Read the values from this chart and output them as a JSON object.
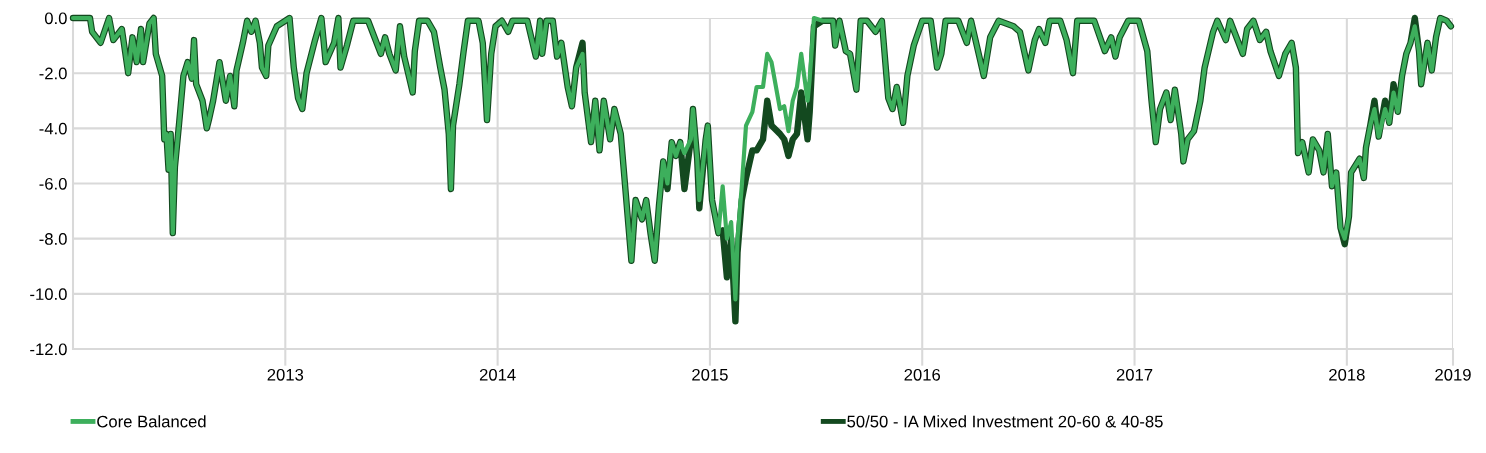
{
  "chart_data": {
    "type": "line",
    "x": [
      2012.0,
      2012.08,
      2012.09,
      2012.13,
      2012.17,
      2012.19,
      2012.23,
      2012.26,
      2012.28,
      2012.3,
      2012.32,
      2012.33,
      2012.36,
      2012.38,
      2012.39,
      2012.42,
      2012.43,
      2012.44,
      2012.45,
      2012.46,
      2012.47,
      2012.48,
      2012.5,
      2012.52,
      2012.54,
      2012.56,
      2012.57,
      2012.58,
      2012.61,
      2012.63,
      2012.64,
      2012.66,
      2012.69,
      2012.72,
      2012.74,
      2012.76,
      2012.77,
      2012.8,
      2012.82,
      2012.84,
      2012.86,
      2012.88,
      2012.89,
      2012.91,
      2012.92,
      2012.96,
      2013.02,
      2013.04,
      2013.06,
      2013.08,
      2013.1,
      2013.14,
      2013.17,
      2013.19,
      2013.23,
      2013.25,
      2013.26,
      2013.29,
      2013.32,
      2013.39,
      2013.45,
      2013.47,
      2013.49,
      2013.52,
      2013.54,
      2013.56,
      2013.6,
      2013.61,
      2013.63,
      2013.67,
      2013.7,
      2013.73,
      2013.75,
      2013.77,
      2013.78,
      2013.79,
      2013.82,
      2013.84,
      2013.86,
      2013.91,
      2013.93,
      2013.95,
      2013.97,
      2013.99,
      2014.02,
      2014.05,
      2014.07,
      2014.14,
      2014.18,
      2014.2,
      2014.21,
      2014.23,
      2014.26,
      2014.28,
      2014.3,
      2014.33,
      2014.35,
      2014.37,
      2014.4,
      2014.41,
      2014.44,
      2014.46,
      2014.48,
      2014.5,
      2014.53,
      2014.55,
      2014.58,
      2014.63,
      2014.65,
      2014.68,
      2014.7,
      2014.72,
      2014.74,
      2014.76,
      2014.78,
      2014.8,
      2014.82,
      2014.84,
      2014.86,
      2014.88,
      2014.91,
      2014.92,
      2014.94,
      2014.95,
      2014.98,
      2014.99,
      2015.01,
      2015.04,
      2015.06,
      2015.08,
      2015.1,
      2015.12,
      2015.13,
      2015.15,
      2015.17,
      2015.2,
      2015.22,
      2015.25,
      2015.27,
      2015.29,
      2015.33,
      2015.35,
      2015.37,
      2015.39,
      2015.41,
      2015.43,
      2015.46,
      2015.47,
      2015.49,
      2015.53,
      2015.58,
      2015.59,
      2015.61,
      2015.64,
      2015.66,
      2015.69,
      2015.71,
      2015.74,
      2015.78,
      2015.81,
      2015.84,
      2015.86,
      2015.88,
      2015.91,
      2015.93,
      2015.96,
      2016.0,
      2016.04,
      2016.07,
      2016.09,
      2016.11,
      2016.17,
      2016.21,
      2016.23,
      2016.29,
      2016.32,
      2016.36,
      2016.43,
      2016.46,
      2016.5,
      2016.53,
      2016.55,
      2016.58,
      2016.6,
      2016.65,
      2016.68,
      2016.71,
      2016.73,
      2016.81,
      2016.86,
      2016.89,
      2016.91,
      2016.93,
      2016.97,
      2017.02,
      2017.06,
      2017.08,
      2017.1,
      2017.12,
      2017.15,
      2017.17,
      2017.19,
      2017.22,
      2017.23,
      2017.25,
      2017.28,
      2017.31,
      2017.33,
      2017.37,
      2017.39,
      2017.43,
      2017.45,
      2017.51,
      2017.53,
      2017.56,
      2017.59,
      2017.62,
      2017.64,
      2017.68,
      2017.71,
      2017.74,
      2017.76,
      2017.77,
      2017.79,
      2017.82,
      2017.84,
      2017.87,
      2017.89,
      2017.91,
      2017.93,
      2017.95,
      2017.97,
      2017.99,
      2018.01,
      2018.02,
      2018.06,
      2018.08,
      2018.09,
      2018.11,
      2018.13,
      2018.15,
      2018.18,
      2018.2,
      2018.22,
      2018.24,
      2018.26,
      2018.28,
      2018.3,
      2018.32,
      2018.34,
      2018.35,
      2018.38,
      2018.4,
      2018.42,
      2018.44,
      2018.47,
      2018.49
    ],
    "series": [
      {
        "name": "Core Balanced",
        "color": "#3daf5c",
        "values": [
          0,
          0,
          -0.5,
          -0.9,
          0,
          -0.8,
          -0.4,
          -2.0,
          -0.7,
          -1.6,
          -0.4,
          -1.6,
          -0.2,
          0,
          -1.3,
          -2.1,
          -4.4,
          -4.2,
          -5.5,
          -4.2,
          -7.8,
          -5.4,
          -3.8,
          -2.1,
          -1.6,
          -2.2,
          -0.8,
          -2.4,
          -3.0,
          -4.0,
          -3.7,
          -3.0,
          -1.6,
          -3.0,
          -2.1,
          -3.2,
          -1.9,
          -0.9,
          -0.1,
          -0.5,
          -0.1,
          -0.9,
          -1.8,
          -2.1,
          -1.0,
          -0.3,
          0,
          -1.8,
          -2.9,
          -3.3,
          -2.0,
          -0.8,
          0,
          -1.6,
          -0.9,
          0,
          -1.8,
          -1.0,
          -0.1,
          -0.1,
          -1.3,
          -0.7,
          -1.3,
          -1.9,
          -0.3,
          -1.4,
          -2.7,
          -1.2,
          -0.1,
          -0.1,
          -0.5,
          -1.8,
          -2.6,
          -4.2,
          -6.2,
          -3.9,
          -2.4,
          -1.2,
          -0.1,
          -0.1,
          -0.9,
          -3.7,
          -1.3,
          -0.3,
          -0.1,
          -0.5,
          -0.1,
          -0.1,
          -1.4,
          -0.1,
          -1.3,
          -0.1,
          -0.1,
          -1.4,
          -0.9,
          -2.5,
          -3.2,
          -1.8,
          -1.3,
          -2.7,
          -4.5,
          -3.0,
          -4.8,
          -3.0,
          -4.4,
          -3.3,
          -4.2,
          -8.8,
          -6.6,
          -7.3,
          -6.6,
          -7.8,
          -8.8,
          -6.8,
          -5.2,
          -6.0,
          -4.5,
          -5.0,
          -4.5,
          -4.9,
          -4.4,
          -3.3,
          -5.1,
          -6.6,
          -4.4,
          -3.9,
          -6.6,
          -7.8,
          -6.1,
          -8.0,
          -7.4,
          -10.2,
          -8.0,
          -6.1,
          -3.9,
          -3.4,
          -2.5,
          -2.5,
          -1.3,
          -1.6,
          -3.3,
          -3.2,
          -4.1,
          -3.0,
          -2.5,
          -1.3,
          -3.0,
          -2.2,
          0,
          -0.1,
          -0.1,
          -1.0,
          -0.1,
          -1.2,
          -1.3,
          -2.6,
          -0.1,
          -0.1,
          -0.5,
          -0.1,
          -2.9,
          -3.3,
          -2.5,
          -3.8,
          -2.1,
          -1.0,
          -0.1,
          -0.1,
          -1.8,
          -1.3,
          -0.1,
          -0.1,
          -0.9,
          -0.1,
          -2.1,
          -0.7,
          -0.1,
          -0.3,
          -0.5,
          -1.9,
          -0.8,
          -0.4,
          -0.9,
          -0.1,
          -0.1,
          -0.8,
          -2.0,
          -0.1,
          -0.1,
          -1.2,
          -0.7,
          -1.4,
          -0.7,
          -0.1,
          -0.1,
          -1.2,
          -3.0,
          -4.5,
          -3.3,
          -2.7,
          -3.7,
          -2.6,
          -4.2,
          -5.2,
          -4.4,
          -4.1,
          -3.0,
          -1.8,
          -0.5,
          -0.1,
          -0.8,
          -0.1,
          -1.3,
          -0.4,
          -0.1,
          -0.8,
          -0.5,
          -1.2,
          -2.1,
          -1.3,
          -0.9,
          -1.8,
          -4.9,
          -4.5,
          -5.6,
          -4.4,
          -4.8,
          -5.6,
          -4.2,
          -6.1,
          -5.6,
          -7.6,
          -8.0,
          -7.2,
          -5.6,
          -5.1,
          -5.8,
          -4.7,
          -3.9,
          -3.3,
          -4.3,
          -3.3,
          -3.8,
          -2.7,
          -3.4,
          -2.1,
          -1.3,
          -0.9,
          -0.3,
          -1.2,
          -2.4,
          -0.9,
          -1.9,
          -0.7,
          0,
          -0.1,
          -0.3
        ]
      },
      {
        "name": "50/50 - IA Mixed Investment 20-60 & 40-85",
        "color": "#13491f",
        "values": [
          0,
          0,
          -0.5,
          -0.9,
          0,
          -0.8,
          -0.4,
          -2.0,
          -0.7,
          -1.6,
          -0.4,
          -1.6,
          -0.2,
          0,
          -1.3,
          -2.1,
          -4.4,
          -4.2,
          -5.5,
          -4.2,
          -7.8,
          -5.4,
          -3.8,
          -2.1,
          -1.6,
          -2.2,
          -0.8,
          -2.4,
          -3.0,
          -4.0,
          -3.7,
          -3.0,
          -1.6,
          -3.0,
          -2.1,
          -3.2,
          -1.9,
          -0.9,
          -0.1,
          -0.5,
          -0.1,
          -0.9,
          -1.8,
          -2.1,
          -1.0,
          -0.3,
          0,
          -1.8,
          -2.9,
          -3.3,
          -2.0,
          -0.8,
          0,
          -1.6,
          -0.9,
          0,
          -1.8,
          -1.0,
          -0.1,
          -0.1,
          -1.3,
          -0.7,
          -1.3,
          -1.9,
          -0.3,
          -1.4,
          -2.7,
          -1.2,
          -0.1,
          -0.1,
          -0.5,
          -1.8,
          -2.6,
          -4.2,
          -6.2,
          -3.9,
          -2.4,
          -1.2,
          -0.1,
          -0.1,
          -0.9,
          -3.7,
          -1.3,
          -0.3,
          -0.1,
          -0.5,
          -0.1,
          -0.1,
          -1.4,
          -0.1,
          -1.3,
          -0.1,
          -0.1,
          -1.4,
          -0.9,
          -2.5,
          -3.2,
          -1.8,
          -0.9,
          -2.7,
          -4.5,
          -3.0,
          -4.8,
          -3.0,
          -4.4,
          -3.3,
          -4.2,
          -8.8,
          -6.6,
          -7.3,
          -6.6,
          -7.8,
          -8.8,
          -6.8,
          -5.2,
          -6.2,
          -4.5,
          -5.0,
          -4.5,
          -6.2,
          -4.4,
          -3.3,
          -5.1,
          -6.9,
          -4.4,
          -3.9,
          -6.6,
          -7.8,
          -7.7,
          -9.4,
          -8.0,
          -11.0,
          -8.5,
          -6.6,
          -5.8,
          -4.8,
          -4.8,
          -4.4,
          -3.0,
          -3.9,
          -4.2,
          -4.4,
          -5.0,
          -4.4,
          -4.2,
          -2.7,
          -4.4,
          -3.4,
          -0.3,
          -0.1,
          -0.1,
          -1.0,
          -0.1,
          -1.2,
          -1.3,
          -2.6,
          -0.1,
          -0.1,
          -0.5,
          -0.1,
          -2.9,
          -3.3,
          -2.5,
          -3.8,
          -2.1,
          -1.0,
          -0.1,
          -0.1,
          -1.8,
          -1.3,
          -0.1,
          -0.1,
          -0.9,
          -0.1,
          -2.1,
          -0.7,
          -0.1,
          -0.3,
          -0.5,
          -1.9,
          -0.8,
          -0.4,
          -0.9,
          -0.1,
          -0.1,
          -0.8,
          -2.0,
          -0.1,
          -0.1,
          -1.2,
          -0.7,
          -1.4,
          -0.7,
          -0.1,
          -0.1,
          -1.2,
          -3.0,
          -4.5,
          -3.3,
          -2.7,
          -3.7,
          -2.6,
          -4.2,
          -5.2,
          -4.4,
          -4.1,
          -3.0,
          -1.8,
          -0.5,
          -0.1,
          -0.8,
          -0.1,
          -1.3,
          -0.4,
          -0.1,
          -0.8,
          -0.5,
          -1.2,
          -2.1,
          -1.3,
          -0.9,
          -1.8,
          -4.9,
          -4.5,
          -5.6,
          -4.4,
          -4.8,
          -5.6,
          -4.2,
          -6.1,
          -5.6,
          -7.6,
          -8.2,
          -7.2,
          -5.6,
          -5.1,
          -5.8,
          -4.7,
          -3.9,
          -3.0,
          -4.3,
          -3.0,
          -3.8,
          -2.4,
          -3.4,
          -2.1,
          -1.3,
          -0.9,
          0,
          -1.2,
          -2.4,
          -0.9,
          -1.9,
          -0.7,
          0,
          -0.1,
          -0.3
        ]
      }
    ],
    "xlim": [
      2012.0,
      2018.5
    ],
    "xticks": [
      2013,
      2014,
      2015,
      2016,
      2017,
      2018,
      {
        "value": 2018.5,
        "label": "2019"
      }
    ],
    "ylim": [
      -12,
      0
    ],
    "yticks": [
      {
        "value": 0,
        "label": "0.0"
      },
      {
        "value": -2,
        "label": "-2.0"
      },
      {
        "value": -4,
        "label": "-4.0"
      },
      {
        "value": -6,
        "label": "-6.0"
      },
      {
        "value": -8,
        "label": "-8.0"
      },
      {
        "value": -10,
        "label": "-10.0"
      },
      {
        "value": -12,
        "label": "-12.0"
      }
    ],
    "grid": true,
    "legend": "bottom",
    "marker": "none",
    "line_style": "solid"
  }
}
